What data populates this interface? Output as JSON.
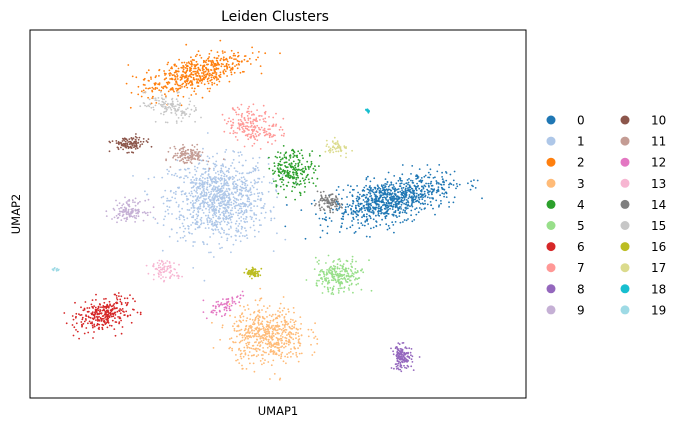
{
  "chart_data": {
    "type": "scatter",
    "title": "Leiden Clusters",
    "xlabel": "UMAP1",
    "ylabel": "UMAP2",
    "ticks_shown": false,
    "grid": false,
    "legend_position": "right-outside, two columns",
    "xlim": [
      0,
      100
    ],
    "ylim": [
      0,
      100
    ],
    "series": [
      {
        "name": "0",
        "color": "#1f77b4",
        "x": 73.0,
        "y": 54.0,
        "n": 900
      },
      {
        "name": "1",
        "color": "#aec7e8",
        "x": 38.0,
        "y": 54.0,
        "n": 1000
      },
      {
        "name": "2",
        "color": "#ff7f0e",
        "x": 33.0,
        "y": 88.0,
        "n": 520
      },
      {
        "name": "3",
        "color": "#ffbb78",
        "x": 48.0,
        "y": 17.0,
        "n": 560
      },
      {
        "name": "4",
        "color": "#2ca02c",
        "x": 53.0,
        "y": 62.0,
        "n": 230
      },
      {
        "name": "5",
        "color": "#98df8a",
        "x": 62.0,
        "y": 33.0,
        "n": 250
      },
      {
        "name": "6",
        "color": "#d62728",
        "x": 15.0,
        "y": 23.0,
        "n": 300
      },
      {
        "name": "7",
        "color": "#ff9896",
        "x": 45.0,
        "y": 74.0,
        "n": 200
      },
      {
        "name": "8",
        "color": "#9467bd",
        "x": 75.0,
        "y": 11.0,
        "n": 150
      },
      {
        "name": "9",
        "color": "#c5b0d5",
        "x": 20.0,
        "y": 51.0,
        "n": 130
      },
      {
        "name": "10",
        "color": "#8c564b",
        "x": 20.0,
        "y": 69.0,
        "n": 120
      },
      {
        "name": "11",
        "color": "#c49c94",
        "x": 32.0,
        "y": 66.0,
        "n": 130
      },
      {
        "name": "12",
        "color": "#e377c2",
        "x": 39.0,
        "y": 25.0,
        "n": 70
      },
      {
        "name": "13",
        "color": "#f7b6d2",
        "x": 27.0,
        "y": 35.0,
        "n": 80
      },
      {
        "name": "14",
        "color": "#7f7f7f",
        "x": 60.0,
        "y": 53.0,
        "n": 100
      },
      {
        "name": "15",
        "color": "#c7c7c7",
        "x": 28.0,
        "y": 79.0,
        "n": 130
      },
      {
        "name": "16",
        "color": "#bcbd22",
        "x": 45.0,
        "y": 34.0,
        "n": 80
      },
      {
        "name": "17",
        "color": "#dbdb8d",
        "x": 62.0,
        "y": 68.0,
        "n": 50
      },
      {
        "name": "18",
        "color": "#17becf",
        "x": 68.0,
        "y": 78.0,
        "n": 12
      },
      {
        "name": "19",
        "color": "#9edae5",
        "x": 5.0,
        "y": 35.0,
        "n": 12
      }
    ]
  }
}
